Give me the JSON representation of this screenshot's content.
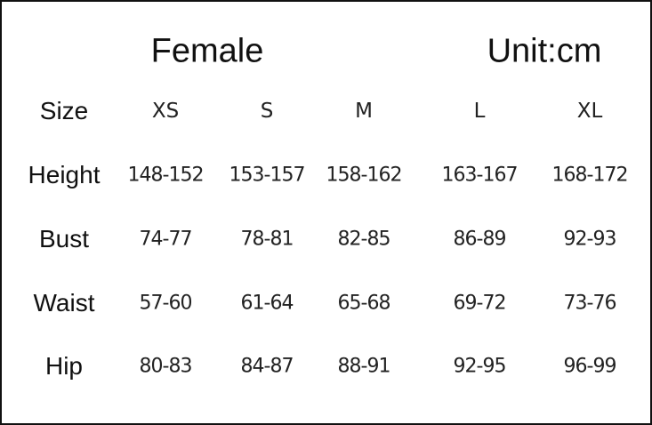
{
  "header": {
    "title": "Female",
    "unit": "Unit:cm"
  },
  "table": {
    "columns": [
      "Size",
      "XS",
      "S",
      "M",
      "L",
      "XL"
    ],
    "rows": [
      [
        "Height",
        "148-152",
        "153-157",
        "158-162",
        "163-167",
        "168-172"
      ],
      [
        "Bust",
        "74-77",
        "78-81",
        "82-85",
        "86-89",
        "92-93"
      ],
      [
        "Waist",
        "57-60",
        "61-64",
        "65-68",
        "69-72",
        "73-76"
      ],
      [
        "Hip",
        "80-83",
        "84-87",
        "88-91",
        "92-95",
        "96-99"
      ]
    ]
  }
}
